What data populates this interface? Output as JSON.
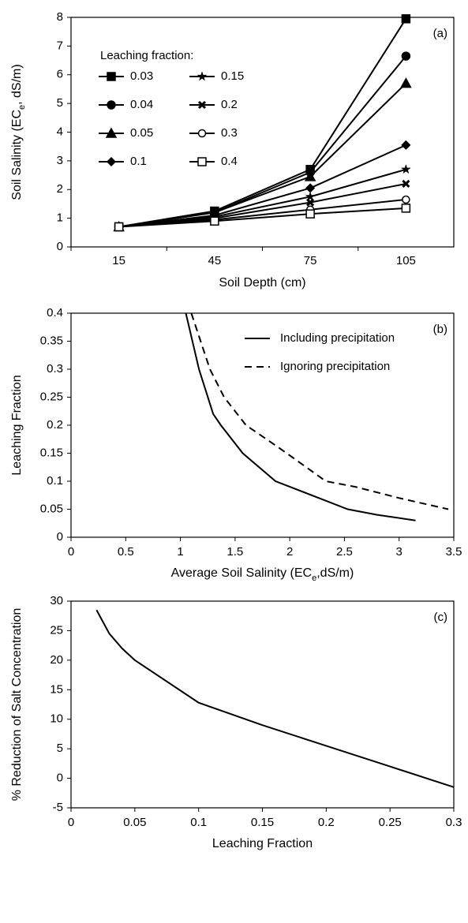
{
  "chart_data": [
    {
      "type": "line",
      "annotation": "(a)",
      "x_label": "Soil Depth (cm)",
      "y_label_parts": [
        "Soil Salinity (EC",
        "e",
        ", dS/m)"
      ],
      "categories": [
        "15",
        "45",
        "75",
        "105"
      ],
      "ylim": [
        0,
        8
      ],
      "yticks": [
        0,
        1,
        2,
        3,
        4,
        5,
        6,
        7,
        8
      ],
      "legend_title": "Leaching fraction:",
      "legend": "upper left",
      "series": [
        {
          "name": "0.03",
          "color": "#000000",
          "marker": "square",
          "values": [
            0.7,
            1.25,
            2.7,
            7.95
          ]
        },
        {
          "name": "0.04",
          "color": "#000000",
          "marker": "circle",
          "values": [
            0.7,
            1.2,
            2.6,
            6.65
          ]
        },
        {
          "name": "0.05",
          "color": "#000000",
          "marker": "triangle",
          "values": [
            0.7,
            1.2,
            2.45,
            5.7
          ]
        },
        {
          "name": "0.1",
          "color": "#000000",
          "marker": "diamond",
          "values": [
            0.7,
            1.1,
            2.05,
            3.55
          ]
        },
        {
          "name": "0.15",
          "color": "#000000",
          "marker": "star",
          "values": [
            0.7,
            1.05,
            1.75,
            2.7
          ]
        },
        {
          "name": "0.2",
          "color": "#000000",
          "marker": "cross",
          "values": [
            0.7,
            1.0,
            1.55,
            2.2
          ]
        },
        {
          "name": "0.3",
          "color": "#000000",
          "marker": "open-circle",
          "values": [
            0.7,
            0.95,
            1.3,
            1.65
          ]
        },
        {
          "name": "0.4",
          "color": "#000000",
          "marker": "open-square",
          "values": [
            0.7,
            0.9,
            1.15,
            1.35
          ]
        }
      ]
    },
    {
      "type": "line",
      "annotation": "(b)",
      "x_label_parts": [
        "Average Soil Salinity (EC",
        "e",
        ",dS/m)"
      ],
      "y_label": "Leaching Fraction",
      "xlim": [
        0,
        3.5
      ],
      "xticks": [
        0,
        0.5,
        1,
        1.5,
        2,
        2.5,
        3,
        3.5
      ],
      "ylim": [
        0,
        0.4
      ],
      "yticks": [
        0,
        0.05,
        0.1,
        0.15,
        0.2,
        0.25,
        0.3,
        0.35,
        0.4
      ],
      "legend": "upper right",
      "series": [
        {
          "name": "Including precipitation",
          "color": "#000000",
          "line_style": "solid",
          "x": [
            1.05,
            1.17,
            1.3,
            1.37,
            1.57,
            1.87,
            2.53,
            2.8,
            3.15
          ],
          "values": [
            0.4,
            0.3,
            0.22,
            0.2,
            0.15,
            0.1,
            0.05,
            0.04,
            0.03
          ]
        },
        {
          "name": "Ignoring precipitation",
          "color": "#000000",
          "line_style": "dashed",
          "x": [
            1.1,
            1.27,
            1.4,
            1.6,
            1.9,
            2.33,
            2.6,
            3.0,
            3.45
          ],
          "values": [
            0.4,
            0.3,
            0.25,
            0.2,
            0.16,
            0.1,
            0.09,
            0.07,
            0.05
          ]
        }
      ]
    },
    {
      "type": "line",
      "annotation": "(c)",
      "x_label": "Leaching Fraction",
      "y_label": "% Reduction of Salt Concentration",
      "xlim": [
        0,
        0.3
      ],
      "xticks": [
        0,
        0.05,
        0.1,
        0.15,
        0.2,
        0.25,
        0.3
      ],
      "ylim": [
        -5,
        30
      ],
      "yticks": [
        -5,
        0,
        5,
        10,
        15,
        20,
        25,
        30
      ],
      "series": [
        {
          "color": "#000000",
          "line_style": "solid",
          "x": [
            0.02,
            0.03,
            0.04,
            0.05,
            0.1,
            0.15,
            0.2,
            0.25,
            0.3
          ],
          "values": [
            28.5,
            24.5,
            22,
            20,
            12.8,
            9,
            5.5,
            2,
            -1.5
          ]
        }
      ]
    }
  ]
}
